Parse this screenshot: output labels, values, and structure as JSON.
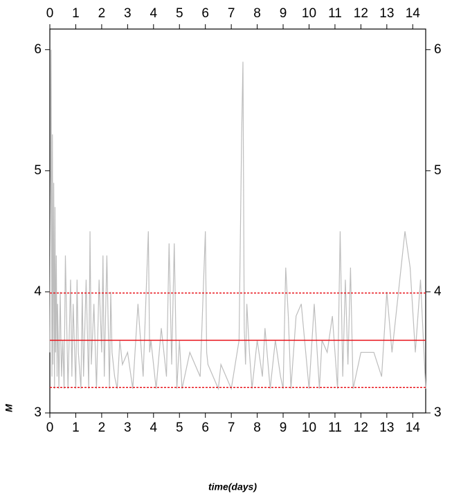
{
  "chart_data": {
    "type": "line",
    "x_label": "time(days)",
    "y_label": "M",
    "xlim": [
      0,
      14.5
    ],
    "ylim": [
      3,
      6.17
    ],
    "xticks": [
      0,
      1,
      2,
      3,
      4,
      5,
      6,
      7,
      8,
      9,
      10,
      11,
      12,
      13,
      14
    ],
    "yticks": [
      3,
      4,
      5,
      6
    ],
    "reference_lines": [
      {
        "value": 3.6,
        "style": "solid",
        "color": "#e8141b"
      },
      {
        "value": 3.99,
        "style": "dashed",
        "color": "#e8141b"
      },
      {
        "value": 3.21,
        "style": "dashed",
        "color": "#e8141b"
      }
    ],
    "series": [
      {
        "color": "#bdbdbd",
        "x": [
          0,
          0.05,
          0.08,
          0.1,
          0.12,
          0.15,
          0.18,
          0.2,
          0.22,
          0.25,
          0.28,
          0.3,
          0.35,
          0.4,
          0.45,
          0.5,
          0.55,
          0.6,
          0.7,
          0.8,
          0.85,
          0.9,
          1.0,
          1.05,
          1.1,
          1.2,
          1.25,
          1.3,
          1.4,
          1.5,
          1.55,
          1.6,
          1.7,
          1.8,
          1.9,
          2.0,
          2.05,
          2.1,
          2.2,
          2.3,
          2.35,
          2.4,
          2.5,
          2.6,
          2.7,
          2.8,
          3.0,
          3.2,
          3.4,
          3.6,
          3.8,
          3.85,
          3.9,
          4.1,
          4.3,
          4.5,
          4.6,
          4.7,
          4.8,
          4.9,
          5.0,
          5.1,
          5.4,
          5.6,
          5.8,
          6.0,
          6.05,
          6.1,
          6.3,
          6.5,
          6.6,
          7.0,
          7.3,
          7.4,
          7.45,
          7.5,
          7.55,
          7.6,
          7.7,
          7.8,
          8.0,
          8.2,
          8.3,
          8.5,
          8.7,
          8.9,
          9.0,
          9.1,
          9.2,
          9.3,
          9.5,
          9.7,
          10.0,
          10.2,
          10.4,
          10.5,
          10.7,
          10.9,
          11.1,
          11.2,
          11.3,
          11.4,
          11.5,
          11.6,
          11.7,
          11.8,
          12.0,
          12.5,
          12.8,
          13.0,
          13.2,
          13.4,
          13.7,
          13.9,
          14.1,
          14.3,
          14.5
        ],
        "values": [
          3.5,
          6.0,
          3.3,
          5.3,
          3.4,
          4.9,
          3.2,
          4.7,
          3.5,
          4.3,
          3.3,
          3.9,
          3.2,
          4.0,
          3.3,
          3.6,
          3.2,
          4.3,
          3.2,
          4.1,
          3.3,
          3.9,
          3.2,
          4.1,
          3.5,
          3.2,
          4.0,
          3.3,
          4.1,
          3.2,
          4.5,
          3.4,
          3.9,
          3.2,
          4.1,
          3.5,
          4.3,
          3.3,
          4.3,
          3.2,
          4.0,
          3.5,
          3.3,
          3.2,
          3.6,
          3.4,
          3.5,
          3.2,
          3.9,
          3.3,
          4.5,
          3.5,
          3.6,
          3.2,
          3.7,
          3.3,
          4.4,
          3.4,
          4.4,
          3.2,
          3.6,
          3.2,
          3.5,
          3.4,
          3.3,
          4.5,
          3.5,
          3.4,
          3.3,
          3.2,
          3.4,
          3.2,
          3.6,
          5.3,
          5.9,
          3.7,
          3.4,
          3.9,
          3.5,
          3.2,
          3.6,
          3.3,
          3.7,
          3.2,
          3.6,
          3.3,
          3.2,
          4.2,
          3.8,
          3.2,
          3.8,
          3.9,
          3.2,
          3.9,
          3.2,
          3.6,
          3.5,
          3.8,
          3.2,
          4.5,
          3.3,
          4.1,
          3.4,
          4.2,
          3.2,
          3.3,
          3.5,
          3.5,
          3.3,
          4.0,
          3.5,
          3.9,
          4.5,
          4.2,
          3.5,
          4.1,
          3.2
        ]
      }
    ]
  }
}
